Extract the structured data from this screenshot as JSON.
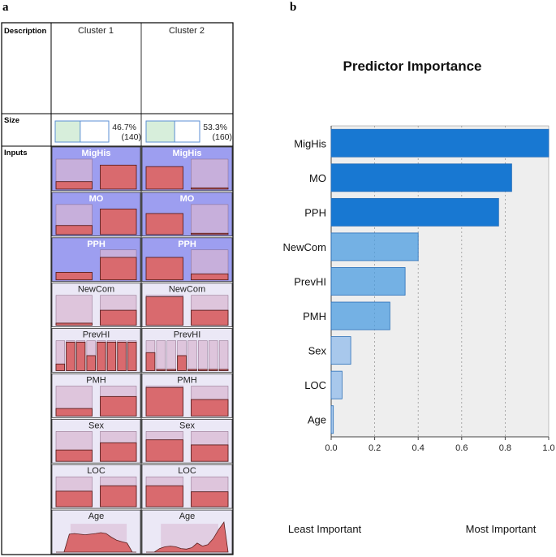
{
  "panels": {
    "a": "a",
    "b": "b"
  },
  "cluster_table": {
    "description_label": "Description",
    "size_label": "Size",
    "inputs_label": "Inputs",
    "clusters": [
      {
        "name": "Cluster 1",
        "size_pct": "46.7%",
        "size_n": "(140)",
        "fraction": 0.467
      },
      {
        "name": "Cluster 2",
        "size_pct": "53.3%",
        "size_n": "(160)",
        "fraction": 0.533
      }
    ],
    "inputs": [
      {
        "name": "MigHis",
        "type": "categorical",
        "importance": 1.0,
        "cluster1": {
          "bg": [
            1.0,
            0.0
          ],
          "fg": [
            0.25,
            0.8
          ]
        },
        "cluster2": {
          "bg": [
            0.0,
            1.0
          ],
          "fg": [
            0.75,
            0.04
          ]
        }
      },
      {
        "name": "MO",
        "type": "categorical",
        "importance": 0.83,
        "cluster1": {
          "bg": [
            1.0,
            0.0
          ],
          "fg": [
            0.3,
            0.85
          ]
        },
        "cluster2": {
          "bg": [
            0.0,
            1.0
          ],
          "fg": [
            0.7,
            0.04
          ]
        }
      },
      {
        "name": "PPH",
        "type": "categorical",
        "importance": 0.77,
        "cluster1": {
          "bg": [
            0.0,
            1.0
          ],
          "fg": [
            0.25,
            0.75
          ]
        },
        "cluster2": {
          "bg": [
            0.0,
            1.0
          ],
          "fg": [
            0.75,
            0.2
          ]
        }
      },
      {
        "name": "NewCom",
        "type": "categorical",
        "importance": 0.4,
        "cluster1": {
          "bg": [
            1.0,
            1.0
          ],
          "fg": [
            0.07,
            0.5
          ]
        },
        "cluster2": {
          "bg": [
            1.0,
            1.0
          ],
          "fg": [
            0.95,
            0.5
          ]
        }
      },
      {
        "name": "PrevHI",
        "type": "categorical_multi",
        "importance": 0.34,
        "cluster1": {
          "bg": [
            1.0,
            1.0,
            1.0,
            1.0,
            1.0,
            1.0,
            1.0,
            1.0
          ],
          "fg": [
            0.22,
            0.95,
            0.95,
            0.5,
            0.95,
            0.95,
            0.95,
            0.95
          ]
        },
        "cluster2": {
          "bg": [
            1.0,
            1.0,
            1.0,
            1.0,
            1.0,
            1.0,
            1.0,
            1.0
          ],
          "fg": [
            0.6,
            0.04,
            0.04,
            0.5,
            0.04,
            0.04,
            0.04,
            0.04
          ]
        }
      },
      {
        "name": "PMH",
        "type": "categorical",
        "importance": 0.27,
        "cluster1": {
          "bg": [
            1.0,
            1.0
          ],
          "fg": [
            0.25,
            0.65
          ]
        },
        "cluster2": {
          "bg": [
            1.0,
            1.0
          ],
          "fg": [
            0.95,
            0.55
          ]
        }
      },
      {
        "name": "Sex",
        "type": "categorical",
        "importance": 0.09,
        "cluster1": {
          "bg": [
            1.0,
            1.0
          ],
          "fg": [
            0.38,
            0.62
          ]
        },
        "cluster2": {
          "bg": [
            1.0,
            1.0
          ],
          "fg": [
            0.72,
            0.55
          ]
        }
      },
      {
        "name": "LOC",
        "type": "categorical",
        "importance": 0.05,
        "cluster1": {
          "bg": [
            1.0,
            1.0
          ],
          "fg": [
            0.52,
            0.7
          ]
        },
        "cluster2": {
          "bg": [
            1.0,
            1.0
          ],
          "fg": [
            0.7,
            0.5
          ]
        }
      },
      {
        "name": "Age",
        "type": "continuous",
        "importance": 0.01,
        "cluster1": {
          "fg": [
            0.0,
            0.6,
            0.62,
            0.6,
            0.58,
            0.6,
            0.62,
            0.65,
            0.62,
            0.5,
            0.4,
            0.35,
            0.3,
            0.0
          ]
        },
        "cluster2": {
          "fg": [
            0.0,
            0.12,
            0.18,
            0.2,
            0.18,
            0.12,
            0.1,
            0.15,
            0.3,
            0.2,
            0.25,
            0.45,
            0.75,
            1.0
          ]
        }
      }
    ]
  },
  "chart_data": {
    "type": "bar",
    "orientation": "horizontal",
    "title": "Predictor Importance",
    "categories": [
      "MigHis",
      "MO",
      "PPH",
      "NewCom",
      "PrevHI",
      "PMH",
      "Sex",
      "LOC",
      "Age"
    ],
    "values": [
      1.0,
      0.83,
      0.77,
      0.4,
      0.34,
      0.27,
      0.09,
      0.05,
      0.01
    ],
    "xlim": [
      0.0,
      1.0
    ],
    "xticks": [
      "0.0",
      "0.2",
      "0.4",
      "0.6",
      "0.8",
      "1.0"
    ],
    "least_label": "Least Important",
    "most_label": "Most Important",
    "colors": {
      "high": "#1878d2",
      "mid": "#4b9ce0",
      "low": "#a8c8ec",
      "plot_bg": "#eeeeee",
      "bar_edge": "#2a6fb8"
    }
  },
  "colors": {
    "cell_strong": "#9d9ef0",
    "cell_weak": "#ebe8f6",
    "bar_fill": "#d96a6e",
    "bar_edge": "#5a2020",
    "bg_bar": "#d9b6d2",
    "size_green": "#d7eedb",
    "size_blue": "#5b8fd4"
  }
}
